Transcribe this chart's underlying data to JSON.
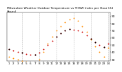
{
  "title": "Milwaukee Weather Outdoor Temperature vs THSW Index per Hour (24 Hours)",
  "title_fontsize": 3.2,
  "background_color": "#ffffff",
  "grid_color": "#bbbbbb",
  "xlim": [
    0.5,
    24.5
  ],
  "ylim": [
    28,
    95
  ],
  "ytick_values": [
    30,
    40,
    50,
    60,
    70,
    80,
    90
  ],
  "ytick_labels": [
    "30",
    "40",
    "50",
    "60",
    "70",
    "80",
    "90"
  ],
  "hours": [
    1,
    2,
    3,
    4,
    5,
    6,
    7,
    8,
    9,
    10,
    11,
    12,
    13,
    14,
    15,
    16,
    17,
    18,
    19,
    20,
    21,
    22,
    23,
    24
  ],
  "temp_outdoor": [
    44,
    42,
    40,
    39,
    38,
    37,
    37,
    39,
    44,
    50,
    56,
    62,
    66,
    70,
    72,
    71,
    70,
    68,
    64,
    59,
    54,
    50,
    47,
    52
  ],
  "thsw_index": [
    34,
    32,
    30,
    28,
    27,
    26,
    26,
    30,
    40,
    52,
    62,
    70,
    76,
    82,
    86,
    88,
    84,
    76,
    68,
    58,
    48,
    40,
    34,
    46
  ],
  "temp_color": "#cc0000",
  "thsw_color": "#ff8c00",
  "black_color": "#000000",
  "marker_size": 1.8,
  "tick_fontsize": 3.0,
  "vgrid_positions": [
    4,
    8,
    12,
    16,
    20,
    24
  ],
  "xtick_positions": [
    1,
    2,
    3,
    4,
    5,
    6,
    7,
    8,
    9,
    10,
    11,
    12,
    13,
    14,
    15,
    16,
    17,
    18,
    19,
    20,
    21,
    22,
    23,
    24
  ],
  "xtick_labels": [
    "1",
    "2",
    "3",
    "4",
    "5",
    "6",
    "7",
    "8",
    "9",
    "10",
    "11",
    "12",
    "13",
    "14",
    "15",
    "16",
    "17",
    "18",
    "19",
    "20",
    "21",
    "22",
    "23",
    "24"
  ]
}
